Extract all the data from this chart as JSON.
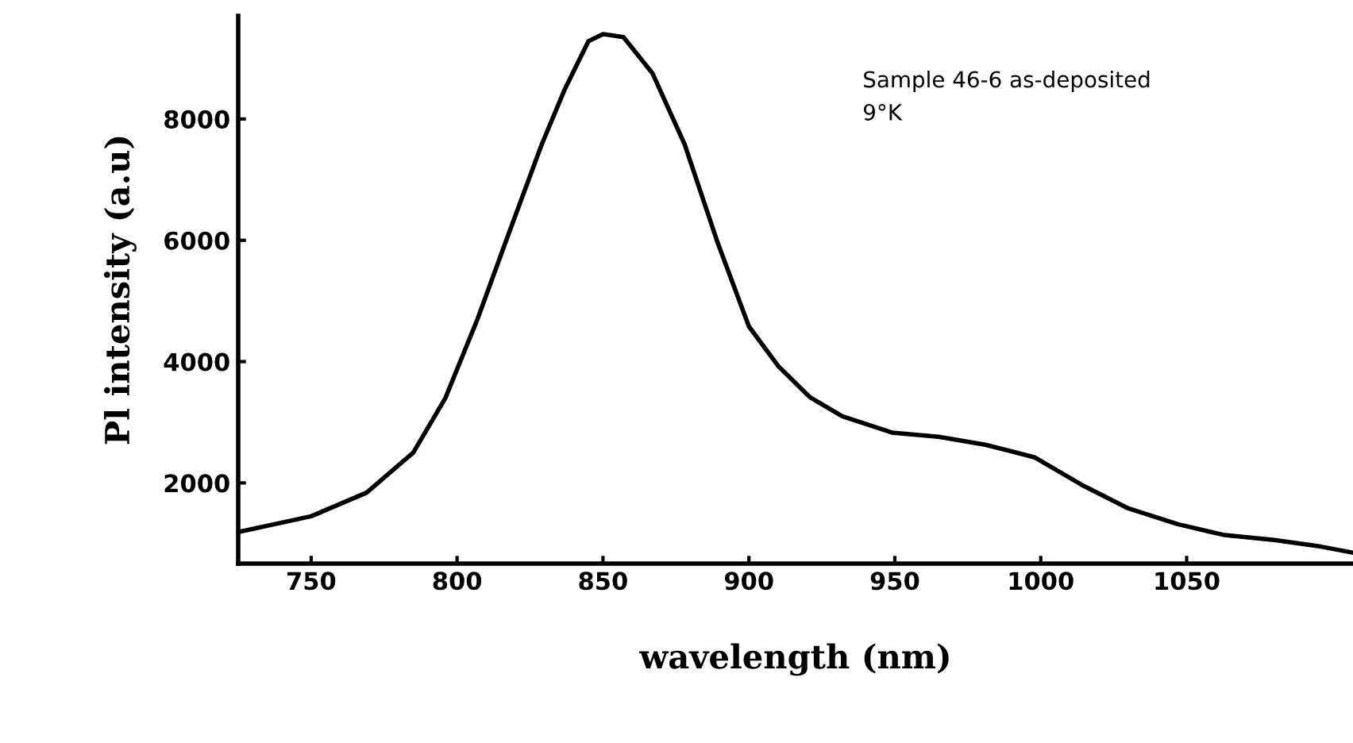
{
  "chart_data": {
    "type": "line",
    "xlabel": "wavelength (nm)",
    "ylabel": "Pl intensity (a.u)",
    "annotations": [
      "Sample 46-6 as-deposited",
      "9°K"
    ],
    "x": [
      726,
      750,
      769,
      785,
      796,
      807,
      818,
      829,
      837,
      845,
      850,
      857,
      867,
      878,
      889,
      900,
      910,
      921,
      932,
      949,
      965,
      981,
      998,
      1014,
      1030,
      1047,
      1063,
      1080,
      1096,
      1107
    ],
    "series": [
      {
        "color": "#000000",
        "values": [
          1200,
          1450,
          1840,
          2500,
          3400,
          4700,
          6150,
          7580,
          8500,
          9280,
          9400,
          9350,
          8750,
          7580,
          6000,
          4580,
          3930,
          3410,
          3100,
          2830,
          2760,
          2630,
          2420,
          1970,
          1580,
          1320,
          1140,
          1060,
          950,
          850
        ]
      }
    ],
    "xlim": [
      725,
      1107
    ],
    "xticks": [
      750,
      800,
      850,
      900,
      950,
      1000,
      1050
    ],
    "ylim": [
      670,
      9700
    ],
    "yticks": [
      2000,
      4000,
      6000,
      8000
    ],
    "grid": false,
    "legend": false,
    "marker": "none",
    "line_style": "solid"
  }
}
